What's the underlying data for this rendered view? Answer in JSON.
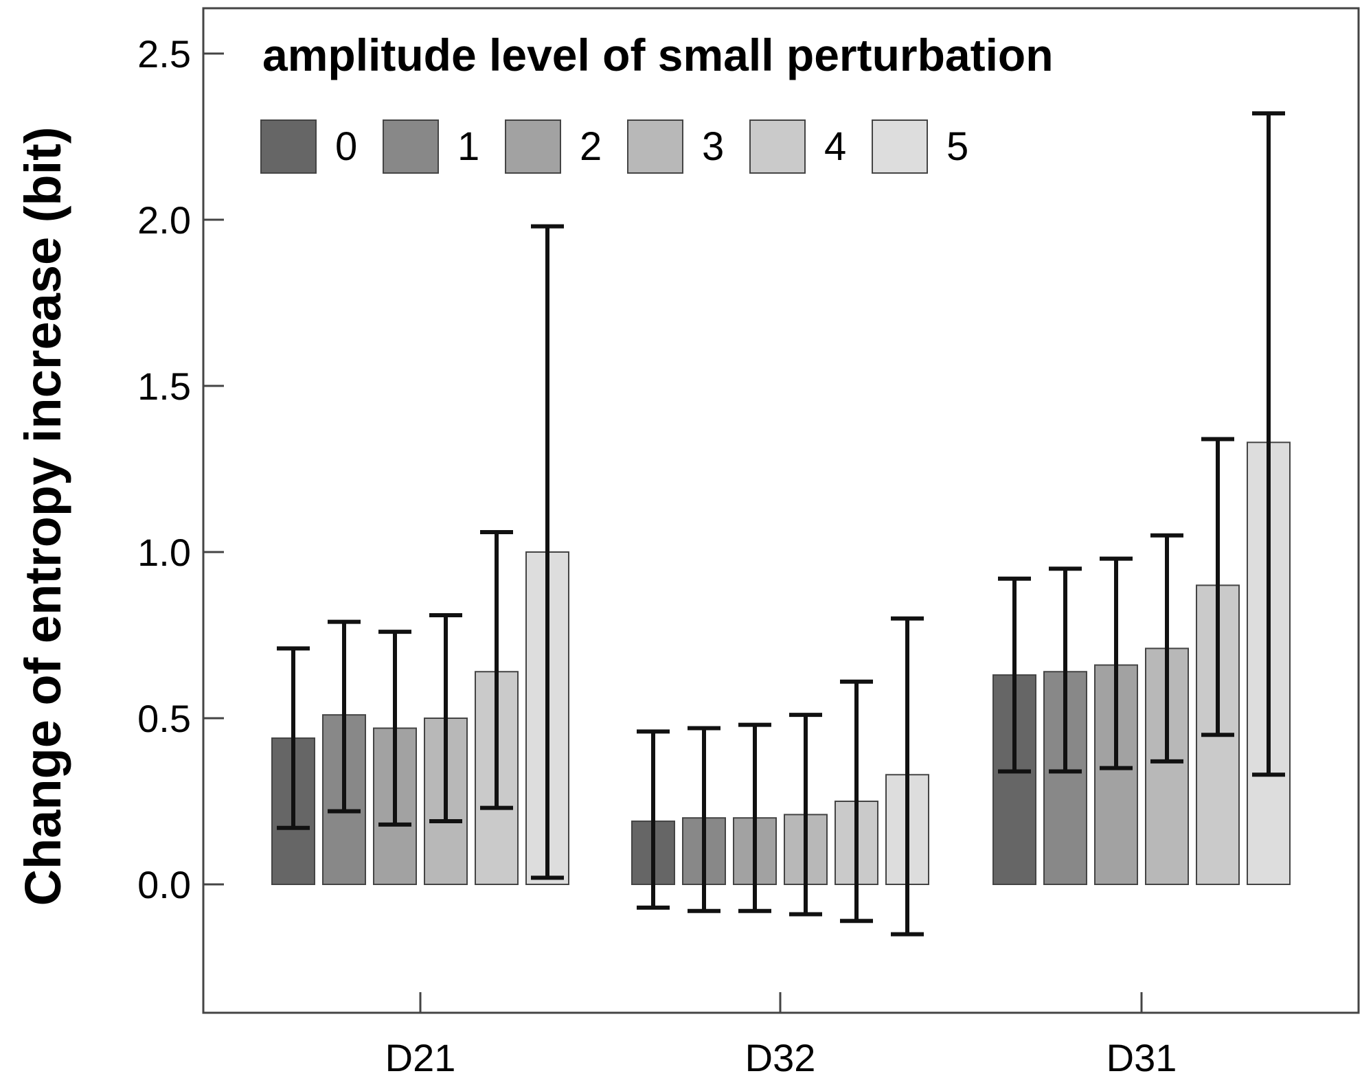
{
  "chart_data": {
    "type": "bar",
    "categories": [
      "D21",
      "D32",
      "D31"
    ],
    "ylabel": "Change of entropy increase (bit)",
    "xlabel": "",
    "ylim": [
      -0.38,
      2.65
    ],
    "yticks": [
      "0.0",
      "0.5",
      "1.0",
      "1.5",
      "2.0",
      "2.5"
    ],
    "legend": {
      "title": "amplitude level of small perturbation",
      "position": "top-left"
    },
    "series": [
      {
        "name": "0",
        "color": "#666666",
        "values": [
          0.44,
          0.19,
          0.63
        ],
        "err_low": [
          0.17,
          -0.07,
          0.34
        ],
        "err_high": [
          0.71,
          0.46,
          0.92
        ]
      },
      {
        "name": "1",
        "color": "#888888",
        "values": [
          0.51,
          0.2,
          0.64
        ],
        "err_low": [
          0.22,
          -0.08,
          0.34
        ],
        "err_high": [
          0.79,
          0.47,
          0.95
        ]
      },
      {
        "name": "2",
        "color": "#a2a2a2",
        "values": [
          0.47,
          0.2,
          0.66
        ],
        "err_low": [
          0.18,
          -0.08,
          0.35
        ],
        "err_high": [
          0.76,
          0.48,
          0.98
        ]
      },
      {
        "name": "3",
        "color": "#b8b8b8",
        "values": [
          0.5,
          0.21,
          0.71
        ],
        "err_low": [
          0.19,
          -0.09,
          0.37
        ],
        "err_high": [
          0.81,
          0.51,
          1.05
        ]
      },
      {
        "name": "4",
        "color": "#cacaca",
        "values": [
          0.64,
          0.25,
          0.9
        ],
        "err_low": [
          0.23,
          -0.11,
          0.45
        ],
        "err_high": [
          1.06,
          0.61,
          1.34
        ]
      },
      {
        "name": "5",
        "color": "#dddddd",
        "values": [
          1.0,
          0.33,
          1.33
        ],
        "err_low": [
          0.02,
          -0.15,
          0.33
        ],
        "err_high": [
          1.98,
          0.8,
          2.32
        ]
      }
    ]
  }
}
